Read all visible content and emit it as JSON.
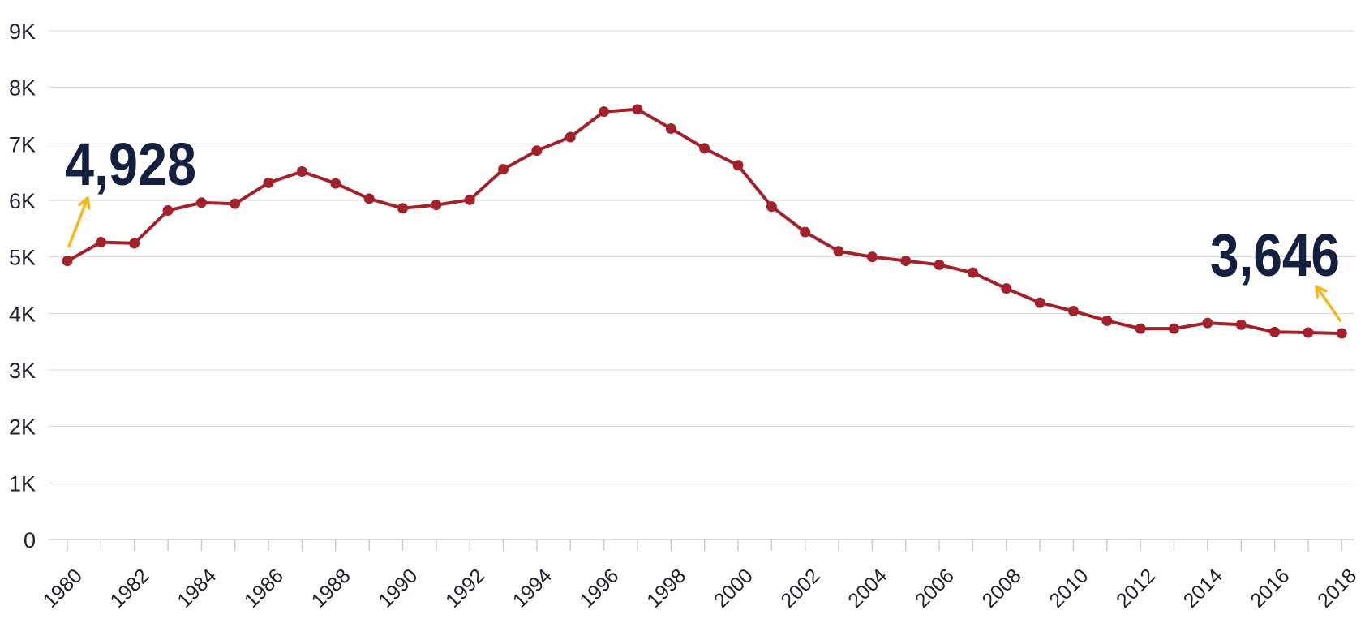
{
  "colors": {
    "line": "#a3212b",
    "marker": "#a3212b",
    "grid": "#d9d9d9",
    "axis": "#cccccc",
    "callout_text": "#13203f",
    "callout_arrow": "#f2b81e"
  },
  "callouts": {
    "start": {
      "label": "4,928",
      "year": 1980,
      "value": 4928
    },
    "end": {
      "label": "3,646",
      "year": 2018,
      "value": 3646
    }
  },
  "chart_data": {
    "type": "line",
    "title": "",
    "xlabel": "",
    "ylabel": "",
    "ylim": [
      0,
      9000
    ],
    "y_ticks": [
      {
        "value": 0,
        "label": "0"
      },
      {
        "value": 1000,
        "label": "1K"
      },
      {
        "value": 2000,
        "label": "2K"
      },
      {
        "value": 3000,
        "label": "3K"
      },
      {
        "value": 4000,
        "label": "4K"
      },
      {
        "value": 5000,
        "label": "5K"
      },
      {
        "value": 6000,
        "label": "6K"
      },
      {
        "value": 7000,
        "label": "7K"
      },
      {
        "value": 8000,
        "label": "8K"
      },
      {
        "value": 9000,
        "label": "9K"
      }
    ],
    "x_tick_labels": [
      "1980",
      "1982",
      "1984",
      "1986",
      "1988",
      "1990",
      "1992",
      "1994",
      "1996",
      "1998",
      "2000",
      "2002",
      "2004",
      "2006",
      "2008",
      "2010",
      "2012",
      "2014",
      "2016",
      "2018"
    ],
    "grid": true,
    "x": [
      1980,
      1981,
      1982,
      1983,
      1984,
      1985,
      1986,
      1987,
      1988,
      1989,
      1990,
      1991,
      1992,
      1993,
      1994,
      1995,
      1996,
      1997,
      1998,
      1999,
      2000,
      2001,
      2002,
      2003,
      2004,
      2005,
      2006,
      2007,
      2008,
      2009,
      2010,
      2011,
      2012,
      2013,
      2014,
      2015,
      2016,
      2017,
      2018
    ],
    "series": [
      {
        "values": [
          4928,
          5260,
          5240,
          5820,
          5960,
          5940,
          6310,
          6510,
          6300,
          6030,
          5860,
          5920,
          6010,
          6550,
          6880,
          7120,
          7570,
          7610,
          7270,
          6920,
          6620,
          5890,
          5440,
          5100,
          5000,
          4930,
          4860,
          4720,
          4440,
          4190,
          4040,
          3870,
          3730,
          3730,
          3830,
          3800,
          3670,
          3660,
          3646
        ]
      }
    ]
  }
}
